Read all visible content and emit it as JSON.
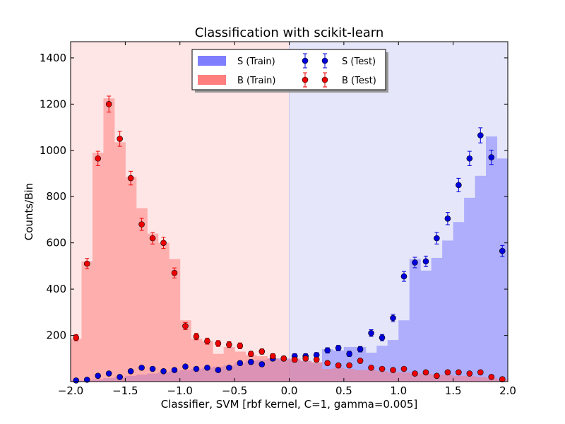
{
  "chart_data": {
    "type": "bar",
    "title": "Classification with scikit-learn",
    "xlabel": "Classifier, SVM [rbf kernel, C=1, gamma=0.005]",
    "ylabel": "Counts/Bin",
    "xlim": [
      -2.0,
      2.0
    ],
    "ylim": [
      0,
      1470
    ],
    "xticks": [
      -2.0,
      -1.5,
      -1.0,
      -0.5,
      0.0,
      0.5,
      1.0,
      1.5,
      2.0
    ],
    "xtick_labels": [
      "−2.0",
      "−1.5",
      "−1.0",
      "−0.5",
      "0.0",
      "0.5",
      "1.0",
      "1.5",
      "2.0"
    ],
    "yticks": [
      200,
      400,
      600,
      800,
      1000,
      1200,
      1400
    ],
    "ytick_labels": [
      "200",
      "400",
      "600",
      "800",
      "1000",
      "1200",
      "1400"
    ],
    "grid": false,
    "legend_position": "top-center",
    "bins": {
      "start": -2.0,
      "end": 2.0,
      "count": 40,
      "edges": [
        -2.0,
        -1.9,
        -1.8,
        -1.7,
        -1.6,
        -1.5,
        -1.4,
        -1.3,
        -1.2,
        -1.1,
        -1.0,
        -0.9,
        -0.8,
        -0.7,
        -0.6,
        -0.5,
        -0.4,
        -0.3,
        -0.2,
        -0.1,
        0.0,
        0.1,
        0.2,
        0.3,
        0.4,
        0.5,
        0.6,
        0.7,
        0.8,
        0.9,
        1.0,
        1.1,
        1.2,
        1.3,
        1.4,
        1.5,
        1.6,
        1.7,
        1.8,
        1.9,
        2.0
      ],
      "centers": [
        -1.95,
        -1.85,
        -1.75,
        -1.65,
        -1.55,
        -1.45,
        -1.35,
        -1.25,
        -1.15,
        -1.05,
        -0.95,
        -0.85,
        -0.75,
        -0.65,
        -0.55,
        -0.45,
        -0.35,
        -0.25,
        -0.15,
        -0.05,
        0.05,
        0.15,
        0.25,
        0.35,
        0.45,
        0.55,
        0.65,
        0.75,
        0.85,
        0.95,
        1.05,
        1.15,
        1.25,
        1.35,
        1.45,
        1.55,
        1.65,
        1.75,
        1.85,
        1.95
      ]
    },
    "decision_regions": [
      {
        "x_range": [
          -2.0,
          0.0
        ],
        "color": "#ffe6e6"
      },
      {
        "x_range": [
          0.0,
          2.0
        ],
        "color": "#e6e6fa"
      }
    ],
    "series": [
      {
        "name": "S (Train)",
        "style": "hist",
        "color": "#7777ff",
        "values": [
          5,
          5,
          10,
          15,
          20,
          25,
          30,
          35,
          40,
          45,
          50,
          55,
          60,
          65,
          70,
          80,
          90,
          95,
          100,
          100,
          95,
          90,
          80,
          140,
          135,
          150,
          150,
          125,
          155,
          180,
          265,
          530,
          480,
          535,
          610,
          690,
          795,
          890,
          1060,
          965
        ]
      },
      {
        "name": "B (Train)",
        "style": "hist",
        "color": "#ff7777",
        "values": [
          185,
          520,
          990,
          1225,
          1035,
          885,
          750,
          640,
          600,
          530,
          265,
          185,
          175,
          120,
          150,
          130,
          115,
          110,
          100,
          95,
          100,
          90,
          85,
          55,
          60,
          55,
          50,
          50,
          45,
          40,
          40,
          35,
          35,
          30,
          30,
          25,
          25,
          20,
          15,
          10
        ]
      },
      {
        "name": "S (Test)",
        "style": "points",
        "color": "#0000dd",
        "values": [
          5,
          8,
          25,
          35,
          20,
          45,
          60,
          55,
          45,
          50,
          65,
          55,
          60,
          50,
          60,
          80,
          85,
          75,
          100,
          100,
          110,
          110,
          115,
          135,
          145,
          120,
          140,
          210,
          190,
          275,
          455,
          515,
          520,
          620,
          705,
          850,
          965,
          1065,
          970,
          565
        ]
      },
      {
        "name": "B (Test)",
        "style": "points",
        "color": "#ee0000",
        "values": [
          190,
          510,
          965,
          1200,
          1050,
          880,
          680,
          620,
          600,
          470,
          240,
          195,
          175,
          165,
          160,
          155,
          120,
          130,
          110,
          100,
          95,
          100,
          95,
          80,
          70,
          70,
          90,
          60,
          55,
          50,
          55,
          35,
          40,
          25,
          40,
          40,
          35,
          40,
          20,
          10
        ]
      }
    ],
    "legend": [
      {
        "label": "S (Train)",
        "kind": "patch",
        "color": "#7777ff"
      },
      {
        "label": "B (Train)",
        "kind": "patch",
        "color": "#ff7777"
      },
      {
        "label": "S (Test)",
        "kind": "errorbar",
        "color": "#0000dd"
      },
      {
        "label": "B (Test)",
        "kind": "errorbar",
        "color": "#ee0000"
      }
    ]
  }
}
